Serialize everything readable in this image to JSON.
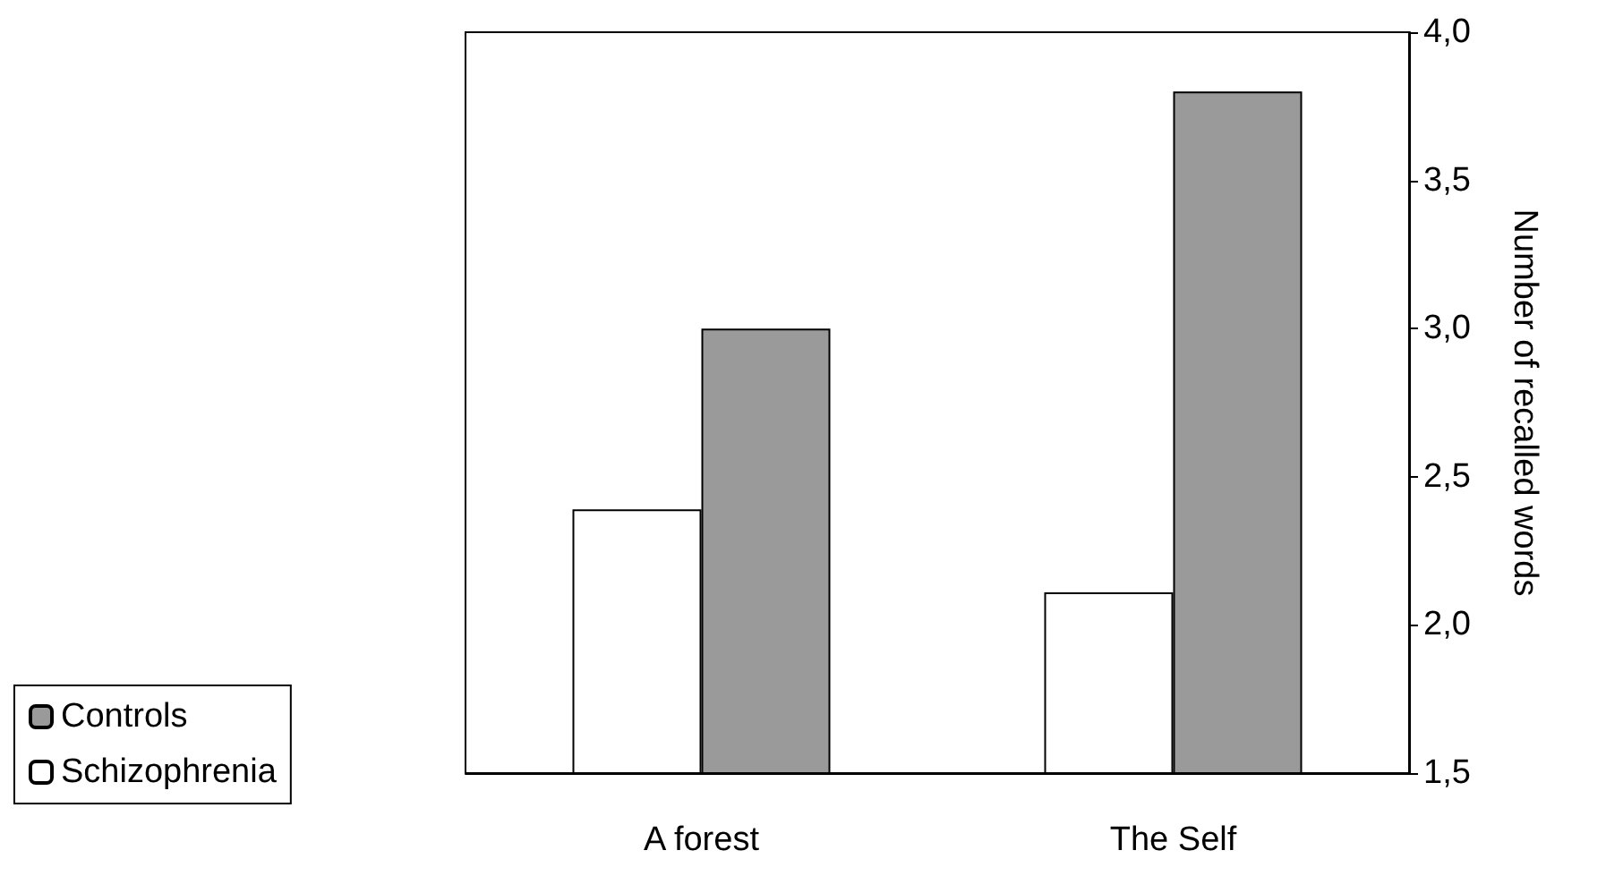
{
  "chart_data": {
    "type": "bar",
    "ylabel": "Number of recalled words",
    "categories": [
      "A forest",
      "The Self"
    ],
    "series": [
      {
        "name": "Schizophrenia",
        "color": "#ffffff",
        "values": [
          2.39,
          2.11
        ]
      },
      {
        "name": "Controls",
        "color": "#9a9a9a",
        "values": [
          3.0,
          3.8
        ]
      }
    ],
    "ylim": [
      1.5,
      4.0
    ],
    "yticks": [
      {
        "value": 1.5,
        "label": "1,5"
      },
      {
        "value": 2.0,
        "label": "2,0"
      },
      {
        "value": 2.5,
        "label": "2,5"
      },
      {
        "value": 3.0,
        "label": "3,0"
      },
      {
        "value": 3.5,
        "label": "3,5"
      },
      {
        "value": 4.0,
        "label": "4,0"
      }
    ],
    "grid": false,
    "legend": "bottom left"
  }
}
